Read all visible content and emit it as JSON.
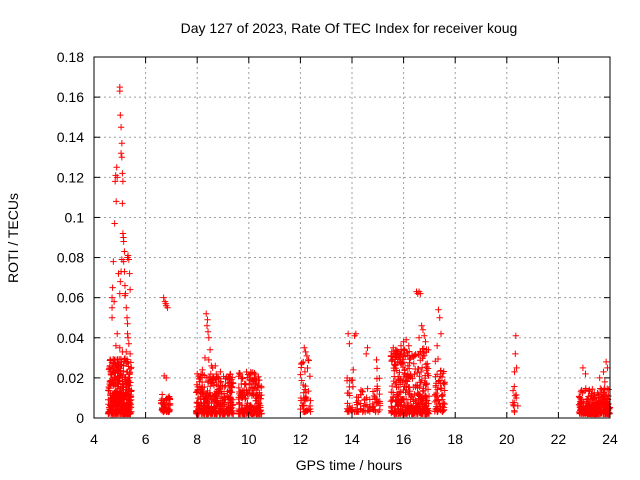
{
  "chart_data": {
    "type": "scatter",
    "title": "Day 127 of 2023, Rate Of TEC Index for receiver koug",
    "xlabel": "GPS time / hours",
    "ylabel": "ROTI / TECUs",
    "xlim": [
      4,
      24
    ],
    "ylim": [
      0,
      0.18
    ],
    "xticks": [
      4,
      6,
      8,
      10,
      12,
      14,
      16,
      18,
      20,
      22,
      24
    ],
    "yticks": [
      0,
      0.02,
      0.04,
      0.06,
      0.08,
      0.1,
      0.12,
      0.14,
      0.16,
      0.18
    ],
    "xtick_labels": [
      "4",
      "6",
      "8",
      "10",
      "12",
      "14",
      "16",
      "18",
      "20",
      "22",
      "24"
    ],
    "ytick_labels": [
      "0",
      "0.02",
      "0.04",
      "0.06",
      "0.08",
      "0.1",
      "0.12",
      "0.14",
      "0.16",
      "0.18"
    ],
    "grid": true,
    "marker": "plus",
    "colors": {
      "points": "#ff0000",
      "grid": "#a0a0a0",
      "axes": "#000000"
    },
    "clusters": [
      {
        "x_range": [
          4.55,
          5.45
        ],
        "y_range": [
          0.002,
          0.03
        ],
        "count": 380
      },
      {
        "x_range": [
          6.6,
          6.95
        ],
        "y_range": [
          0.003,
          0.012
        ],
        "count": 50
      },
      {
        "x_range": [
          7.95,
          9.4
        ],
        "y_range": [
          0.002,
          0.022
        ],
        "count": 320
      },
      {
        "x_range": [
          9.6,
          10.5
        ],
        "y_range": [
          0.002,
          0.023
        ],
        "count": 200
      },
      {
        "x_range": [
          12.0,
          12.4
        ],
        "y_range": [
          0.003,
          0.03
        ],
        "count": 40
      },
      {
        "x_range": [
          13.8,
          14.1
        ],
        "y_range": [
          0.003,
          0.02
        ],
        "count": 25
      },
      {
        "x_range": [
          14.15,
          14.7
        ],
        "y_range": [
          0.003,
          0.015
        ],
        "count": 35
      },
      {
        "x_range": [
          14.8,
          15.1
        ],
        "y_range": [
          0.003,
          0.025
        ],
        "count": 30
      },
      {
        "x_range": [
          15.5,
          17.0
        ],
        "y_range": [
          0.002,
          0.035
        ],
        "count": 360
      },
      {
        "x_range": [
          17.2,
          17.6
        ],
        "y_range": [
          0.003,
          0.03
        ],
        "count": 60
      },
      {
        "x_range": [
          20.2,
          20.45
        ],
        "y_range": [
          0.003,
          0.018
        ],
        "count": 12
      },
      {
        "x_range": [
          22.8,
          24.0
        ],
        "y_range": [
          0.002,
          0.015
        ],
        "count": 300
      }
    ],
    "points": [
      [
        4.7,
        0.05
      ],
      [
        4.7,
        0.055
      ],
      [
        4.7,
        0.06
      ],
      [
        4.72,
        0.065
      ],
      [
        4.75,
        0.078
      ],
      [
        4.78,
        0.058
      ],
      [
        4.8,
        0.097
      ],
      [
        4.82,
        0.118
      ],
      [
        4.84,
        0.121
      ],
      [
        4.86,
        0.108
      ],
      [
        4.88,
        0.125
      ],
      [
        4.9,
        0.12
      ],
      [
        4.95,
        0.072
      ],
      [
        5.0,
        0.062
      ],
      [
        5.02,
        0.068
      ],
      [
        5.05,
        0.073
      ],
      [
        5.08,
        0.079
      ],
      [
        5.0,
        0.165
      ],
      [
        5.0,
        0.163
      ],
      [
        5.02,
        0.151
      ],
      [
        5.05,
        0.145
      ],
      [
        5.08,
        0.137
      ],
      [
        5.05,
        0.132
      ],
      [
        5.08,
        0.13
      ],
      [
        5.1,
        0.122
      ],
      [
        5.12,
        0.118
      ],
      [
        5.1,
        0.107
      ],
      [
        5.12,
        0.092
      ],
      [
        5.14,
        0.09
      ],
      [
        5.15,
        0.088
      ],
      [
        5.18,
        0.073
      ],
      [
        5.2,
        0.066
      ],
      [
        5.22,
        0.062
      ],
      [
        5.25,
        0.055
      ],
      [
        5.28,
        0.05
      ],
      [
        5.3,
        0.047
      ],
      [
        5.3,
        0.042
      ],
      [
        5.32,
        0.04
      ],
      [
        5.35,
        0.037
      ],
      [
        5.3,
        0.08
      ],
      [
        5.32,
        0.081
      ],
      [
        5.35,
        0.079
      ],
      [
        5.38,
        0.072
      ],
      [
        5.4,
        0.064
      ],
      [
        5.2,
        0.061
      ],
      [
        5.15,
        0.078
      ],
      [
        5.18,
        0.083
      ],
      [
        4.9,
        0.042
      ],
      [
        4.85,
        0.036
      ],
      [
        5.0,
        0.035
      ],
      [
        5.1,
        0.033
      ],
      [
        5.25,
        0.033
      ],
      [
        5.4,
        0.032
      ],
      [
        6.7,
        0.06
      ],
      [
        6.75,
        0.058
      ],
      [
        6.78,
        0.057
      ],
      [
        6.8,
        0.056
      ],
      [
        6.85,
        0.055
      ],
      [
        6.72,
        0.021
      ],
      [
        6.8,
        0.02
      ],
      [
        8.35,
        0.052
      ],
      [
        8.4,
        0.049
      ],
      [
        8.38,
        0.046
      ],
      [
        8.42,
        0.043
      ],
      [
        8.45,
        0.04
      ],
      [
        8.5,
        0.034
      ],
      [
        8.3,
        0.03
      ],
      [
        8.45,
        0.029
      ],
      [
        8.55,
        0.026
      ],
      [
        8.6,
        0.025
      ],
      [
        8.7,
        0.026
      ],
      [
        8.2,
        0.024
      ],
      [
        8.9,
        0.023
      ],
      [
        12.15,
        0.035
      ],
      [
        12.2,
        0.033
      ],
      [
        12.25,
        0.031
      ],
      [
        12.3,
        0.029
      ],
      [
        13.85,
        0.042
      ],
      [
        13.9,
        0.037
      ],
      [
        14.1,
        0.041
      ],
      [
        14.15,
        0.042
      ],
      [
        14.6,
        0.035
      ],
      [
        14.55,
        0.032
      ],
      [
        14.05,
        0.024
      ],
      [
        14.95,
        0.029
      ],
      [
        15.6,
        0.035
      ],
      [
        15.7,
        0.033
      ],
      [
        15.9,
        0.036
      ],
      [
        16.0,
        0.038
      ],
      [
        16.1,
        0.039
      ],
      [
        16.2,
        0.036
      ],
      [
        16.5,
        0.063
      ],
      [
        16.55,
        0.062
      ],
      [
        16.6,
        0.063
      ],
      [
        16.65,
        0.062
      ],
      [
        16.7,
        0.046
      ],
      [
        16.75,
        0.044
      ],
      [
        16.8,
        0.041
      ],
      [
        16.6,
        0.04
      ],
      [
        16.85,
        0.038
      ],
      [
        17.35,
        0.054
      ],
      [
        17.4,
        0.05
      ],
      [
        17.45,
        0.042
      ],
      [
        17.3,
        0.036
      ],
      [
        20.35,
        0.041
      ],
      [
        20.33,
        0.032
      ],
      [
        20.38,
        0.025
      ],
      [
        20.3,
        0.023
      ],
      [
        22.95,
        0.025
      ],
      [
        23.05,
        0.022
      ],
      [
        23.6,
        0.02
      ],
      [
        23.75,
        0.023
      ],
      [
        23.85,
        0.028
      ],
      [
        23.9,
        0.025
      ],
      [
        23.8,
        0.018
      ]
    ]
  }
}
